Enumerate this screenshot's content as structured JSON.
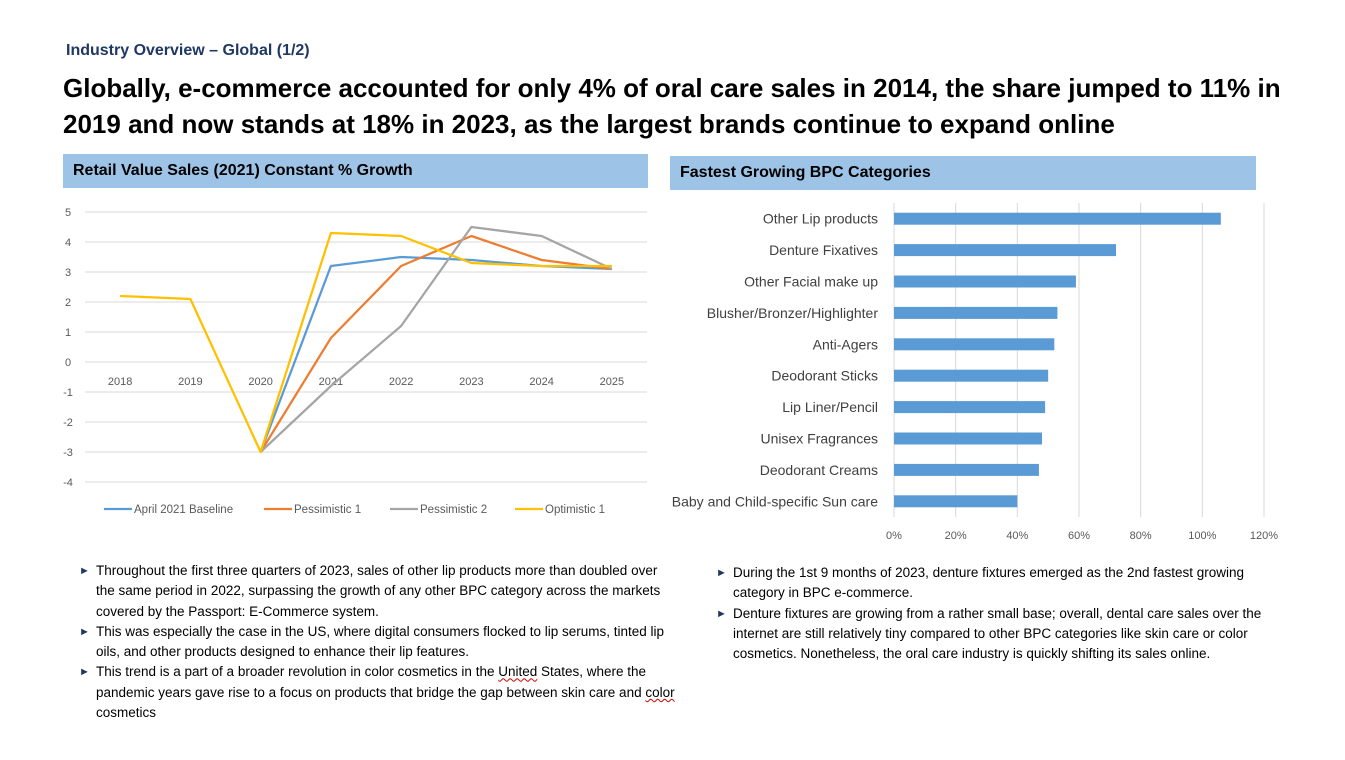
{
  "header": {
    "kicker": "Industry Overview – Global (1/2)",
    "headline": "Globally, e-commerce accounted for only 4% of oral care sales in 2014, the share jumped to 11% in 2019 and now stands at 18% in 2023, as the largest brands continue to expand online"
  },
  "left_panel": {
    "title": "Retail Value Sales (2021) Constant % Growth"
  },
  "right_panel": {
    "title": "Fastest Growing BPC Categories"
  },
  "chart_data": [
    {
      "type": "line",
      "x": [
        "2018",
        "2019",
        "2020",
        "2021",
        "2022",
        "2023",
        "2024",
        "2025"
      ],
      "ylim": [
        -4,
        5
      ],
      "yticks": [
        "5",
        "4",
        "3",
        "2",
        "1",
        "0",
        "-1",
        "-2",
        "-3",
        "-4"
      ],
      "grid": true,
      "legend": "bottom",
      "series": [
        {
          "name": "April 2021 Baseline",
          "color": "#5b9bd5",
          "values": [
            null,
            null,
            -3,
            3.2,
            3.5,
            3.4,
            3.2,
            3.1
          ]
        },
        {
          "name": "Pessimistic 1",
          "color": "#ed7d31",
          "values": [
            null,
            null,
            -3,
            0.8,
            3.2,
            4.2,
            3.4,
            3.1
          ]
        },
        {
          "name": "Pessimistic 2",
          "color": "#a5a5a5",
          "values": [
            null,
            null,
            -3,
            -0.8,
            1.2,
            4.5,
            4.2,
            3.1
          ]
        },
        {
          "name": "Optimistic 1",
          "color": "#ffc000",
          "values": [
            2.2,
            2.1,
            -3,
            4.3,
            4.2,
            3.3,
            3.2,
            3.2
          ]
        }
      ]
    },
    {
      "type": "bar",
      "orientation": "horizontal",
      "categories": [
        "Other Lip products",
        "Denture Fixatives",
        "Other Facial make up",
        "Blusher/Bronzer/Highlighter",
        "Anti-Agers",
        "Deodorant Sticks",
        "Lip Liner/Pencil",
        "Unisex Fragrances",
        "Deodorant Creams",
        "Baby and Child-specific Sun care"
      ],
      "values": [
        1.06,
        0.72,
        0.59,
        0.53,
        0.52,
        0.5,
        0.49,
        0.48,
        0.47,
        0.4
      ],
      "xlim": [
        0,
        1.2
      ],
      "xticks": [
        "0%",
        "20%",
        "40%",
        "60%",
        "80%",
        "100%",
        "120%"
      ],
      "color": "#5b9bd5",
      "grid": true
    }
  ],
  "left_bullets": [
    "Throughout the first three quarters of 2023, sales of other lip products more than doubled over the same period in 2022, surpassing the growth of any other BPC category across the markets covered by the Passport: E-Commerce system.",
    "This was especially the case in the US, where digital consumers flocked to lip serums, tinted lip oils, and other products designed to enhance their lip features.",
    "This trend is a part of a broader revolution in color cosmetics in the United States, where the pandemic years gave rise to a focus on products that bridge the gap between skin care and color cosmetics"
  ],
  "right_bullets": [
    "During the 1st 9 months of 2023, denture fixtures emerged as the 2nd fastest growing category in BPC e-commerce.",
    "Denture fixtures are growing from a rather small base; overall, dental care sales over the internet are still relatively tiny compared to other BPC categories like skin care or color cosmetics. Nonetheless, the oral care industry is quickly shifting its sales online."
  ],
  "bullet_marker": "►"
}
